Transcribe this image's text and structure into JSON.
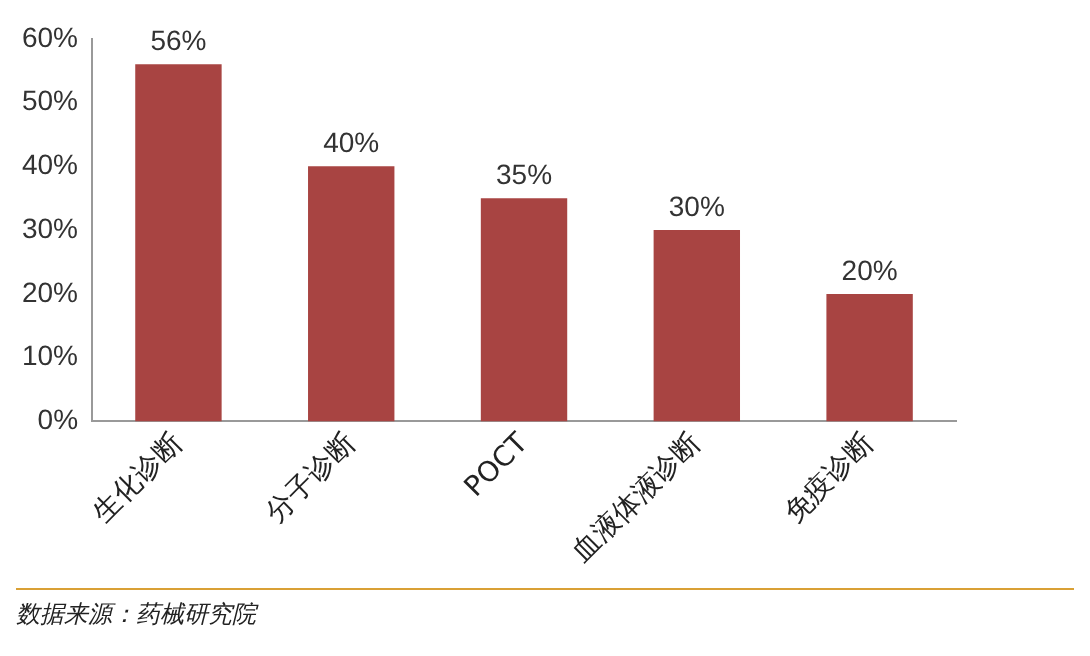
{
  "chart_data": {
    "type": "bar",
    "categories": [
      "生化诊断",
      "分子诊断",
      "POCT",
      "血液体液诊断",
      "免疫诊断"
    ],
    "values": [
      56,
      40,
      35,
      30,
      20
    ],
    "value_labels": [
      "56%",
      "40%",
      "35%",
      "30%",
      "20%"
    ],
    "color": "#a84442",
    "ylim": [
      0,
      60
    ],
    "yticks": [
      {
        "value": 0,
        "label": "0%"
      },
      {
        "value": 10,
        "label": "10%"
      },
      {
        "value": 20,
        "label": "20%"
      },
      {
        "value": 30,
        "label": "30%"
      },
      {
        "value": 40,
        "label": "40%"
      },
      {
        "value": 50,
        "label": "50%"
      },
      {
        "value": 60,
        "label": "60%"
      }
    ],
    "grid": false,
    "legend": false,
    "annotations": [
      "数据来源：药械研究院"
    ]
  }
}
